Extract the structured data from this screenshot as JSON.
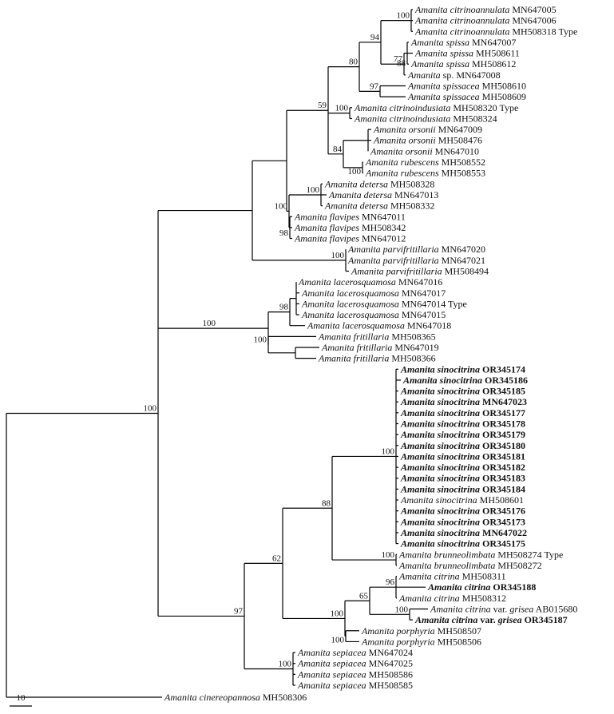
{
  "taxa": [
    {
      "id": "t1",
      "species": "Amanita citrinoannulata",
      "accession": "MN647005",
      "suffix": "",
      "bold": false
    },
    {
      "id": "t2",
      "species": "Amanita citrinoannulata",
      "accession": "MN647006",
      "suffix": "",
      "bold": false
    },
    {
      "id": "t3",
      "species": "Amanita citrinoannulata",
      "accession": "MH508318",
      "suffix": "Type",
      "bold": false
    },
    {
      "id": "t4",
      "species": "Amanita spissa",
      "accession": "MN647007",
      "suffix": "",
      "bold": false
    },
    {
      "id": "t5",
      "species": "Amanita spissa",
      "accession": "MH508611",
      "suffix": "",
      "bold": false
    },
    {
      "id": "t6",
      "species": "Amanita spissa",
      "accession": "MH508612",
      "suffix": "",
      "bold": false
    },
    {
      "id": "t7",
      "species": "Amanita",
      "rest": "sp.",
      "accession": "MN647008",
      "suffix": "",
      "bold": false
    },
    {
      "id": "t8",
      "species": "Amanita spissacea",
      "accession": "MH508610",
      "suffix": "",
      "bold": false
    },
    {
      "id": "t9",
      "species": "Amanita spissacea",
      "accession": "MH508609",
      "suffix": "",
      "bold": false
    },
    {
      "id": "t10",
      "species": "Amanita citrinoindusiata",
      "accession": "MH508320",
      "suffix": "Type",
      "bold": false
    },
    {
      "id": "t11",
      "species": "Amanita citrinoindusiata",
      "accession": "MH508324",
      "suffix": "",
      "bold": false
    },
    {
      "id": "t12",
      "species": "Amanita orsonii",
      "accession": "MN647009",
      "suffix": "",
      "bold": false
    },
    {
      "id": "t13",
      "species": "Amanita orsonii",
      "accession": "MH508476",
      "suffix": "",
      "bold": false
    },
    {
      "id": "t14",
      "species": "Amanita orsonii",
      "accession": "MN647010",
      "suffix": "",
      "bold": false
    },
    {
      "id": "t15",
      "species": "Amanita rubescens",
      "accession": "MH508552",
      "suffix": "",
      "bold": false
    },
    {
      "id": "t16",
      "species": "Amanita rubescens",
      "accession": "MH508553",
      "suffix": "",
      "bold": false
    },
    {
      "id": "t17",
      "species": "Amanita detersa",
      "accession": "MH508328",
      "suffix": "",
      "bold": false
    },
    {
      "id": "t18",
      "species": "Amanita detersa",
      "accession": "MN647013",
      "suffix": "",
      "bold": false
    },
    {
      "id": "t19",
      "species": "Amanita detersa",
      "accession": "MH508332",
      "suffix": "",
      "bold": false
    },
    {
      "id": "t20",
      "species": "Amanita flavipes",
      "accession": "MN647011",
      "suffix": "",
      "bold": false
    },
    {
      "id": "t21",
      "species": "Amanita flavipes",
      "accession": "MH508342",
      "suffix": "",
      "bold": false
    },
    {
      "id": "t22",
      "species": "Amanita flavipes",
      "accession": "MN647012",
      "suffix": "",
      "bold": false
    },
    {
      "id": "t23",
      "species": "Amanita parvifritillaria",
      "accession": "MN647020",
      "suffix": "",
      "bold": false
    },
    {
      "id": "t24",
      "species": "Amanita parvifritillaria",
      "accession": "MN647021",
      "suffix": "",
      "bold": false
    },
    {
      "id": "t25",
      "species": "Amanita parvifritillaria",
      "accession": "MH508494",
      "suffix": "",
      "bold": false
    },
    {
      "id": "t26",
      "species": "Amanita lacerosquamosa",
      "accession": "MN647016",
      "suffix": "",
      "bold": false
    },
    {
      "id": "t27",
      "species": "Amanita lacerosquamosa",
      "accession": "MN647017",
      "suffix": "",
      "bold": false
    },
    {
      "id": "t28",
      "species": "Amanita lacerosquamosa",
      "accession": "MN647014",
      "suffix": "Type",
      "bold": false
    },
    {
      "id": "t29",
      "species": "Amanita lacerosquamosa",
      "accession": "MN647015",
      "suffix": "",
      "bold": false
    },
    {
      "id": "t30",
      "species": "Amanita lacerosquamosa",
      "accession": "MN647018",
      "suffix": "",
      "bold": false
    },
    {
      "id": "t31",
      "species": "Amanita fritillaria",
      "accession": "MH508365",
      "suffix": "",
      "bold": false
    },
    {
      "id": "t32",
      "species": "Amanita fritillaria",
      "accession": "MN647019",
      "suffix": "",
      "bold": false
    },
    {
      "id": "t33",
      "species": "Amanita fritillaria",
      "accession": "MH508366",
      "suffix": "",
      "bold": false
    },
    {
      "id": "t34",
      "species": "Amanita sinocitrina",
      "accession": "OR345174",
      "suffix": "",
      "bold": true
    },
    {
      "id": "t35",
      "species": "Amanita sinocitrina",
      "accession": "OR345186",
      "suffix": "",
      "bold": true
    },
    {
      "id": "t36",
      "species": "Amanita sinocitrina",
      "accession": "OR345185",
      "suffix": "",
      "bold": true
    },
    {
      "id": "t37",
      "species": "Amanita sinocitrina",
      "accession": "MN647023",
      "suffix": "",
      "bold": true
    },
    {
      "id": "t38",
      "species": "Amanita sinocitrina",
      "accession": "OR345177",
      "suffix": "",
      "bold": true
    },
    {
      "id": "t39",
      "species": "Amanita sinocitrina",
      "accession": "OR345178",
      "suffix": "",
      "bold": true
    },
    {
      "id": "t40",
      "species": "Amanita sinocitrina",
      "accession": "OR345179",
      "suffix": "",
      "bold": true
    },
    {
      "id": "t41",
      "species": "Amanita sinocitrina",
      "accession": "OR345180",
      "suffix": "",
      "bold": true
    },
    {
      "id": "t42",
      "species": "Amanita sinocitrina",
      "accession": "OR345181",
      "suffix": "",
      "bold": true
    },
    {
      "id": "t43",
      "species": "Amanita sinocitrina",
      "accession": "OR345182",
      "suffix": "",
      "bold": true
    },
    {
      "id": "t44",
      "species": "Amanita sinocitrina",
      "accession": "OR345183",
      "suffix": "",
      "bold": true
    },
    {
      "id": "t45",
      "species": "Amanita sinocitrina",
      "accession": "OR345184",
      "suffix": "",
      "bold": true
    },
    {
      "id": "t46",
      "species": "Amanita sinocitrina",
      "accession": "MH508601",
      "suffix": "",
      "bold": false
    },
    {
      "id": "t47",
      "species": "Amanita sinocitrina",
      "accession": "OR345176",
      "suffix": "",
      "bold": true
    },
    {
      "id": "t48",
      "species": "Amanita sinocitrina",
      "accession": "OR345173",
      "suffix": "",
      "bold": true
    },
    {
      "id": "t49",
      "species": "Amanita sinocitrina",
      "accession": "MN647022",
      "suffix": "",
      "bold": true
    },
    {
      "id": "t50",
      "species": "Amanita sinocitrina",
      "accession": "OR345175",
      "suffix": "",
      "bold": true
    },
    {
      "id": "t51",
      "species": "Amanita brunneolimbata",
      "accession": "MH508274",
      "suffix": "Type",
      "bold": false
    },
    {
      "id": "t52",
      "species": "Amanita brunneolimbata",
      "accession": "MH508272",
      "suffix": "",
      "bold": false
    },
    {
      "id": "t53",
      "species": "Amanita citrina",
      "accession": "MH508311",
      "suffix": "",
      "bold": false
    },
    {
      "id": "t54",
      "species": "Amanita citrina",
      "accession": "OR345188",
      "suffix": "",
      "bold": true
    },
    {
      "id": "t55",
      "species": "Amanita citrina",
      "accession": "MH508312",
      "suffix": "",
      "bold": false
    },
    {
      "id": "t56",
      "species": "Amanita citrina",
      "varLabel": "var.",
      "variety": "grisea",
      "accession": "AB015680",
      "suffix": "",
      "bold": false
    },
    {
      "id": "t57",
      "species": "Amanita citrina",
      "varLabel": "var.",
      "variety": "grisea",
      "accession": "OR345187",
      "suffix": "",
      "bold": true
    },
    {
      "id": "t58",
      "species": "Amanita porphyria",
      "accession": "MH508507",
      "suffix": "",
      "bold": false
    },
    {
      "id": "t59",
      "species": "Amanita porphyria",
      "accession": "MH508506",
      "suffix": "",
      "bold": false
    },
    {
      "id": "t60",
      "species": "Amanita sepiacea",
      "accession": "MN647024",
      "suffix": "",
      "bold": false
    },
    {
      "id": "t61",
      "species": "Amanita sepiacea",
      "accession": "MN647025",
      "suffix": "",
      "bold": false
    },
    {
      "id": "t62",
      "species": "Amanita sepiacea",
      "accession": "MH508586",
      "suffix": "",
      "bold": false
    },
    {
      "id": "t63",
      "species": "Amanita sepiacea",
      "accession": "MH508585",
      "suffix": "",
      "bold": false
    },
    {
      "id": "t64",
      "species": "Amanita cinereopannosa",
      "accession": "MH508306",
      "suffix": "",
      "bold": false
    }
  ],
  "support_values": [
    "100",
    "94",
    "77",
    "88",
    "80",
    "97",
    "100",
    "59",
    "100",
    "84",
    "100",
    "100",
    "98",
    "100",
    "98",
    "100",
    "100",
    "100",
    "88",
    "100",
    "62",
    "96",
    "65",
    "100",
    "100",
    "97",
    "100",
    "100",
    "100"
  ],
  "scale_bar": {
    "label": "10"
  }
}
